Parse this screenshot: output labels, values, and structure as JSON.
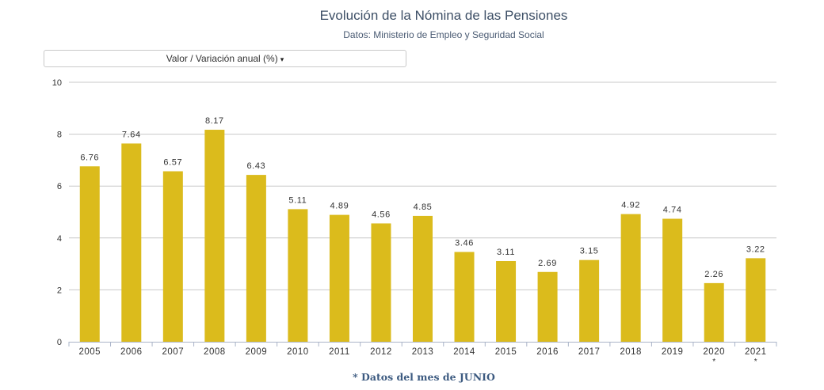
{
  "header": {
    "title": "Evolución de la Nómina de las Pensiones",
    "subtitle": "Datos: Ministerio de Empleo y Seguridad Social"
  },
  "selector": {
    "label": "Valor / Variación anual (%)",
    "caret": "▾"
  },
  "footnote": "* Datos del mes de JUNIO",
  "colors": {
    "bar": "#dbbb1c",
    "grid": "#c8c8c8",
    "axis": "#aab4c8"
  },
  "chart_data": {
    "type": "bar",
    "title": "Evolución de la Nómina de las Pensiones",
    "subtitle": "Datos: Ministerio de Empleo y Seguridad Social",
    "categories": [
      "2005",
      "2006",
      "2007",
      "2008",
      "2009",
      "2010",
      "2011",
      "2012",
      "2013",
      "2014",
      "2015",
      "2016",
      "2017",
      "2018",
      "2019",
      "2020",
      "2021"
    ],
    "category_marks": [
      "",
      "",
      "",
      "",
      "",
      "",
      "",
      "",
      "",
      "",
      "",
      "",
      "",
      "",
      "",
      "*",
      "*"
    ],
    "values": [
      6.76,
      7.64,
      6.57,
      8.17,
      6.43,
      5.11,
      4.89,
      4.56,
      4.85,
      3.46,
      3.11,
      2.69,
      3.15,
      4.92,
      4.74,
      2.26,
      3.22
    ],
    "value_labels": [
      "6.76",
      "7.64",
      "6.57",
      "8.17",
      "6.43",
      "5.11",
      "4.89",
      "4.56",
      "4.85",
      "3.46",
      "3.11",
      "2.69",
      "3.15",
      "4.92",
      "4.74",
      "2.26",
      "3.22"
    ],
    "yticks": [
      "0",
      "2",
      "4",
      "6",
      "8",
      "10"
    ],
    "ylim": [
      0,
      10
    ],
    "grid": true,
    "legend": "none"
  }
}
